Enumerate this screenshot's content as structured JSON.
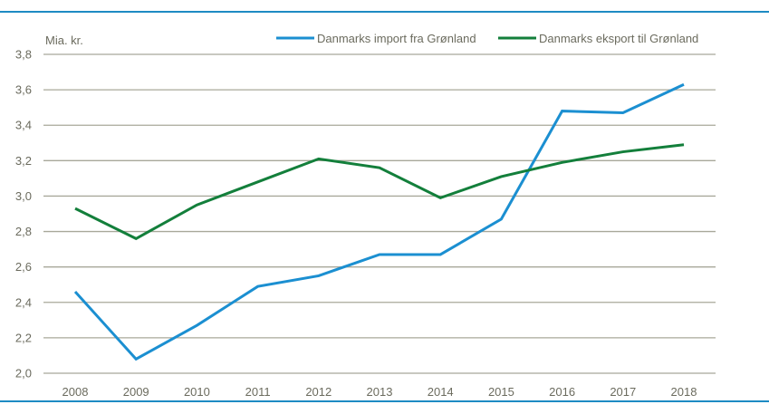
{
  "chart_data": {
    "type": "line",
    "title": "",
    "ylabel": "Mia. kr.",
    "xlabel": "",
    "ylim": [
      2.0,
      3.8
    ],
    "yticks": [
      "2,0",
      "2,2",
      "2,4",
      "2,6",
      "2,8",
      "3,0",
      "3,2",
      "3,4",
      "3,6",
      "3,8"
    ],
    "ytick_values": [
      2.0,
      2.2,
      2.4,
      2.6,
      2.8,
      3.0,
      3.2,
      3.4,
      3.6,
      3.8
    ],
    "categories": [
      "2008",
      "2009",
      "2010",
      "2011",
      "2012",
      "2013",
      "2014",
      "2015",
      "2016",
      "2017",
      "2018"
    ],
    "grid": true,
    "legend_position": "top-right",
    "series": [
      {
        "name": "Danmarks import fra Grønland",
        "color": "#1b8fd1",
        "values": [
          2.46,
          2.08,
          2.27,
          2.49,
          2.55,
          2.67,
          2.67,
          2.87,
          3.48,
          3.47,
          3.63
        ]
      },
      {
        "name": "Danmarks eksport til Grønland",
        "color": "#137f3b",
        "values": [
          2.93,
          2.76,
          2.95,
          3.08,
          3.21,
          3.16,
          2.99,
          3.11,
          3.19,
          3.25,
          3.29
        ]
      }
    ]
  }
}
